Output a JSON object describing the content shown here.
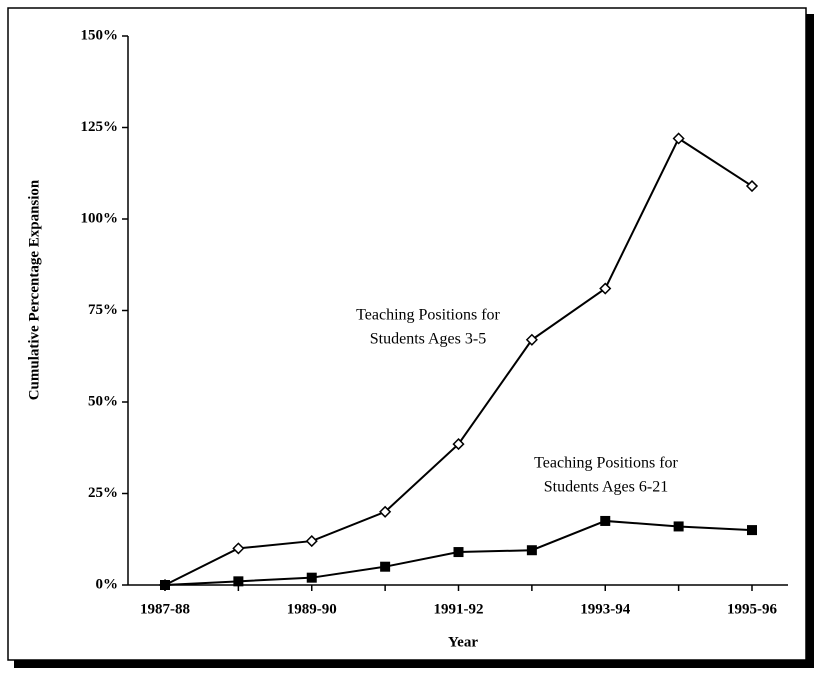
{
  "chart_data": {
    "type": "line",
    "x_label": "Year",
    "y_label": "Cumulative Percentage Expansion",
    "categories": [
      "1987-88",
      null,
      "1989-90",
      null,
      "1991-92",
      null,
      "1993-94",
      null,
      "1995-96"
    ],
    "series": [
      {
        "label": [
          "Teaching Positions for",
          "Students Ages 3-5"
        ],
        "color": "#000000",
        "marker": "diamond",
        "values": [
          0,
          10,
          12,
          20,
          38.5,
          67,
          81,
          122,
          109
        ]
      },
      {
        "label": [
          "Teaching Positions for",
          "Students Ages 6-21"
        ],
        "color": "#000000",
        "marker": "square",
        "values": [
          0,
          1,
          2,
          5,
          9,
          9.5,
          17.5,
          16,
          15
        ]
      }
    ],
    "ylim": [
      0,
      150
    ],
    "yticks": [
      {
        "value": 0,
        "label": "0%"
      },
      {
        "value": 25,
        "label": "25%"
      },
      {
        "value": 50,
        "label": "50%"
      },
      {
        "value": 75,
        "label": "75%"
      },
      {
        "value": 100,
        "label": "100%"
      },
      {
        "value": 125,
        "label": "125%"
      },
      {
        "value": 150,
        "label": "150%"
      }
    ],
    "grid": false
  }
}
